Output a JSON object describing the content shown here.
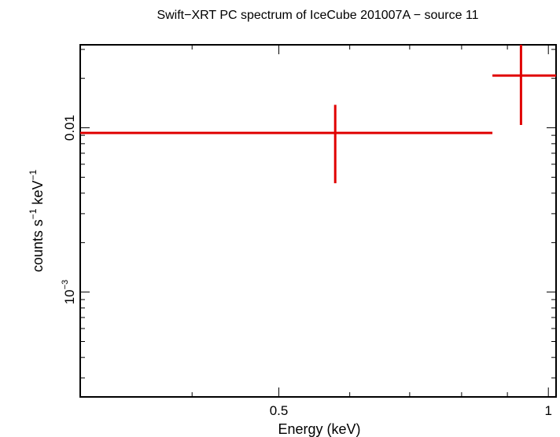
{
  "chart_data": {
    "type": "scatter",
    "title": "Swift−XRT PC spectrum of IceCube 201007A − source 11",
    "xlabel": "Energy (keV)",
    "ylabel": {
      "base": "counts s",
      "exp1": "−1",
      "mid": " keV",
      "exp2": "−1"
    },
    "x_scale": "log",
    "y_scale": "log",
    "xlim": [
      0.3,
      1.02
    ],
    "ylim": [
      0.00023,
      0.032
    ],
    "x_ticks_labeled": [
      {
        "value": 0.5,
        "label": "0.5"
      },
      {
        "value": 1,
        "label": "1"
      }
    ],
    "y_ticks_labeled": [
      {
        "value": 0.01,
        "label": "0.01",
        "exp": ""
      },
      {
        "value": 0.001,
        "label": "10",
        "exp": "−3"
      }
    ],
    "x_minor_ticks": [
      0.3,
      0.4,
      0.6,
      0.7,
      0.8,
      0.9
    ],
    "y_minor_ticks": [
      0.0003,
      0.0004,
      0.0005,
      0.0006,
      0.0007,
      0.0008,
      0.0009,
      0.002,
      0.003,
      0.004,
      0.005,
      0.006,
      0.007,
      0.008,
      0.009,
      0.02,
      0.03
    ],
    "series": [
      {
        "color": "#e00000",
        "points": [
          {
            "x": 0.578,
            "x_lo": 0.3,
            "x_hi": 0.866,
            "y": 0.0093,
            "y_lo": 0.0046,
            "y_hi": 0.0138
          },
          {
            "x": 0.932,
            "x_lo": 0.866,
            "x_hi": 1.02,
            "y": 0.0208,
            "y_lo": 0.0104,
            "y_hi": 0.032
          }
        ]
      }
    ],
    "grid": false,
    "legend": "none"
  }
}
